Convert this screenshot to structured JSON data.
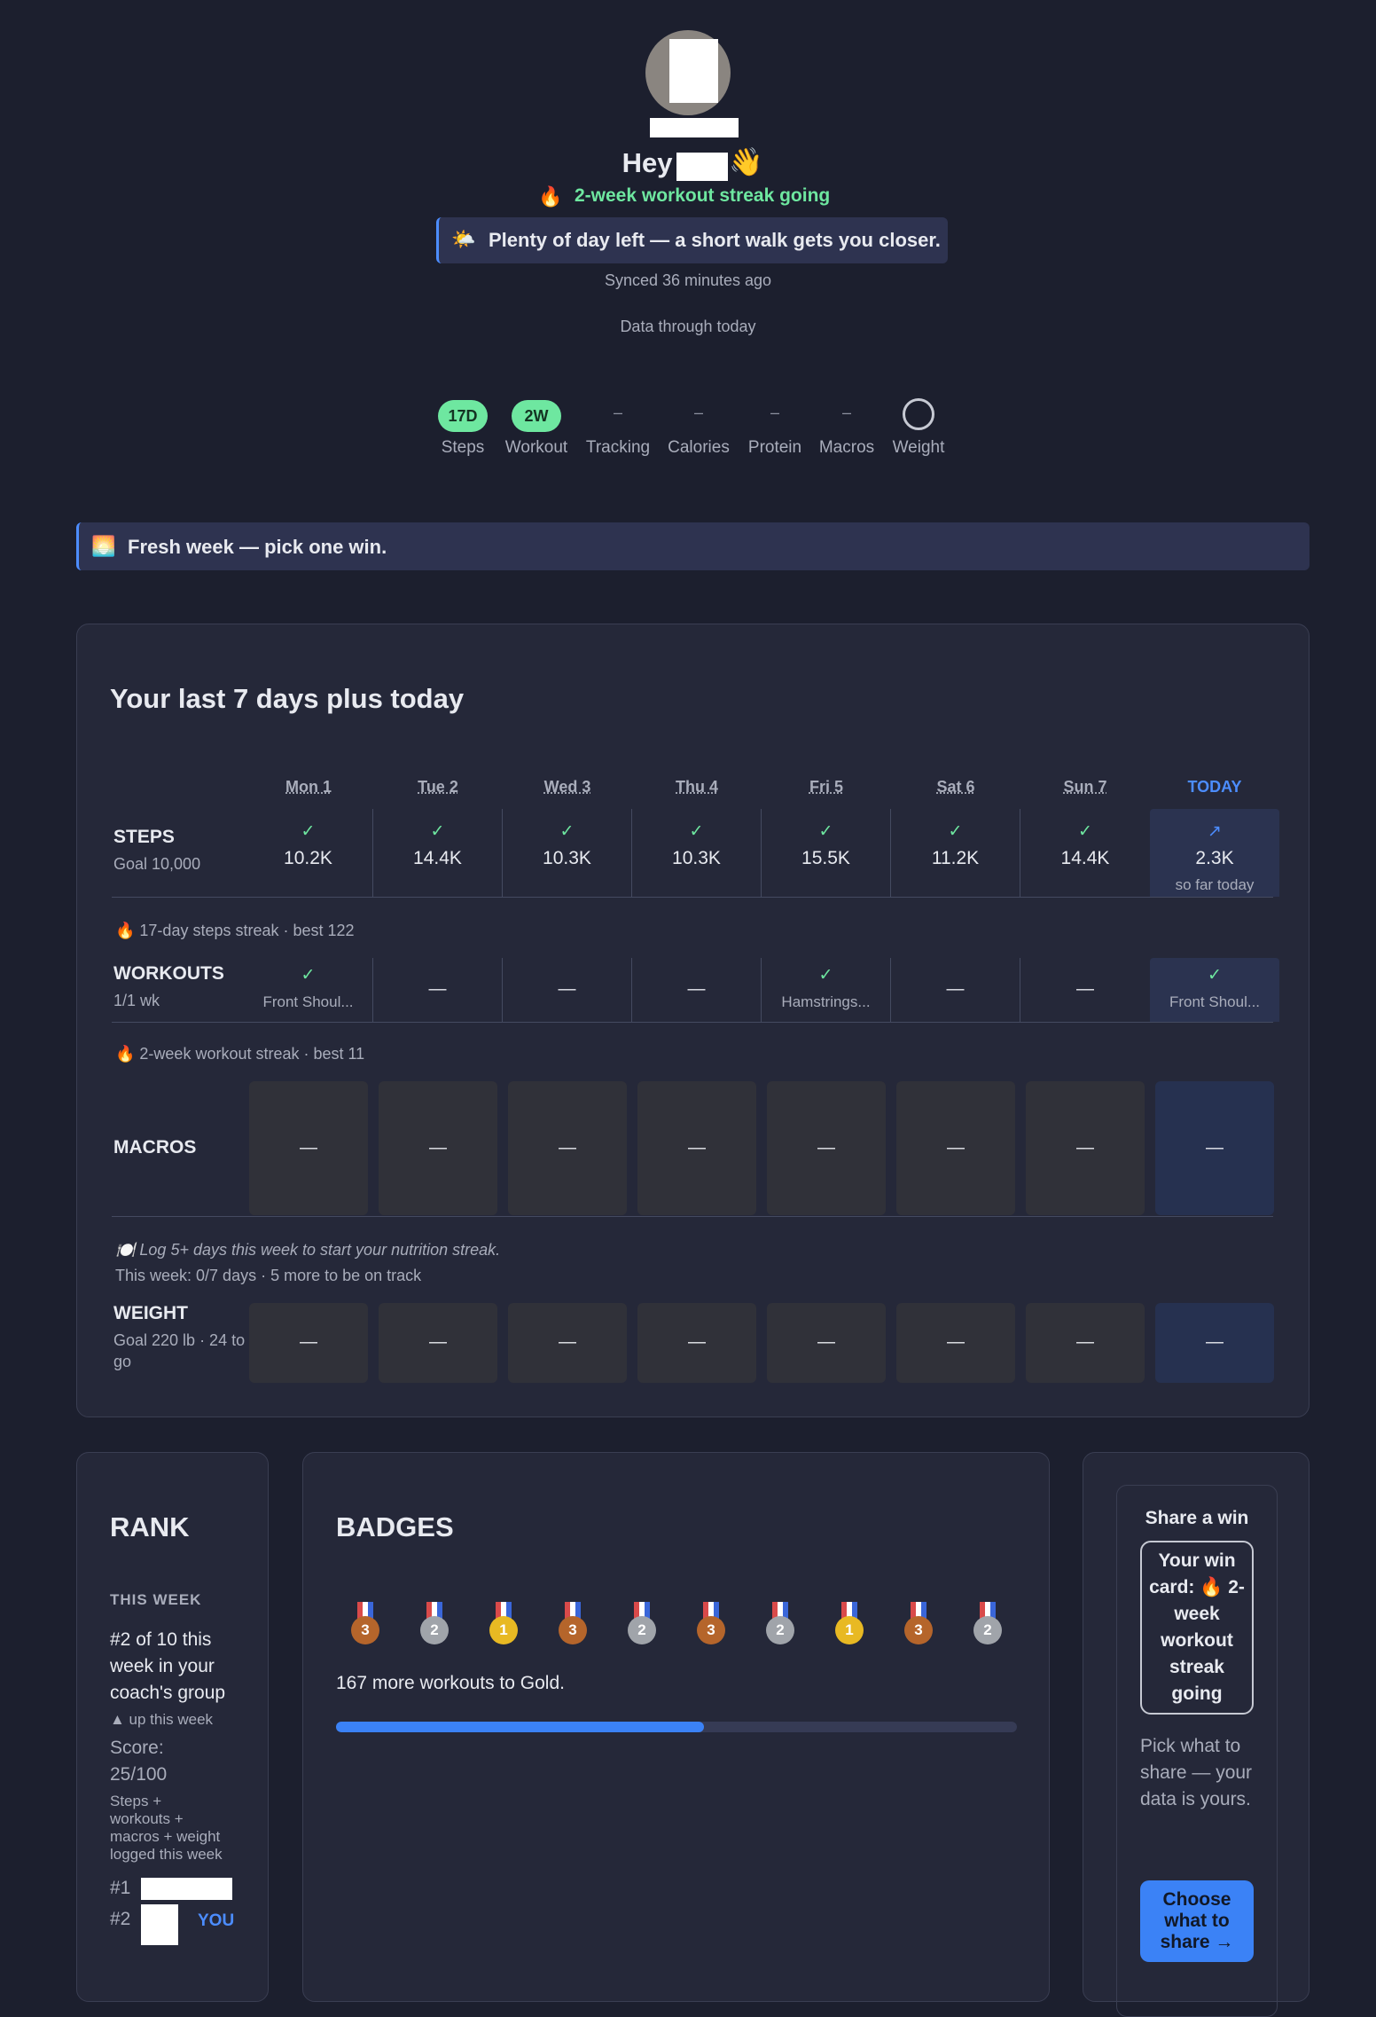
{
  "header": {
    "greeting": "Hey",
    "wave": "👋",
    "streak_icon": "🔥",
    "streak": "2-week workout streak going",
    "message_icon": "🌤️",
    "message": "Plenty of day left — a short walk gets you closer.",
    "synced": "Synced 36 minutes ago",
    "data_through": "Data through today"
  },
  "streaks": [
    {
      "badge": "17D",
      "label": "Steps"
    },
    {
      "badge": "2W",
      "label": "Workout"
    },
    {
      "badge": "–",
      "label": "Tracking"
    },
    {
      "badge": "–",
      "label": "Calories"
    },
    {
      "badge": "–",
      "label": "Protein"
    },
    {
      "badge": "–",
      "label": "Macros"
    },
    {
      "label": "Weight"
    }
  ],
  "banner": {
    "icon": "🌅",
    "text": "Fresh week — pick one win."
  },
  "week": {
    "title": "Your last 7 days plus today",
    "days": [
      "Mon 1",
      "Tue 2",
      "Wed 3",
      "Thu 4",
      "Fri 5",
      "Sat 6",
      "Sun 7",
      "TODAY"
    ],
    "steps": {
      "label": "STEPS",
      "sub": "Goal 10,000",
      "cells": [
        {
          "mark": "✓",
          "value": "10.2K"
        },
        {
          "mark": "✓",
          "value": "14.4K"
        },
        {
          "mark": "✓",
          "value": "10.3K"
        },
        {
          "mark": "✓",
          "value": "10.3K"
        },
        {
          "mark": "✓",
          "value": "15.5K"
        },
        {
          "mark": "✓",
          "value": "11.2K"
        },
        {
          "mark": "✓",
          "value": "14.4K"
        },
        {
          "mark": "↗",
          "value": "2.3K",
          "note": "so far today"
        }
      ],
      "streak": "🔥 17-day steps streak · best 122"
    },
    "workouts": {
      "label": "WORKOUTS",
      "sub": "1/1 wk",
      "cells": [
        {
          "mark": "✓",
          "value": "Front Shoul..."
        },
        {
          "mark": "—"
        },
        {
          "mark": "—"
        },
        {
          "mark": "—"
        },
        {
          "mark": "✓",
          "value": "Hamstrings..."
        },
        {
          "mark": "—"
        },
        {
          "mark": "—"
        },
        {
          "mark": "✓",
          "value": "Front Shoul..."
        }
      ],
      "streak": "🔥 2-week workout streak · best 11"
    },
    "macros": {
      "label": "MACROS",
      "cells": [
        "—",
        "—",
        "—",
        "—",
        "—",
        "—",
        "—",
        "—"
      ],
      "note": "🍽️ Log 5+ days this week to start your nutrition streak.",
      "progress": "This week: 0/7 days · 5 more to be on track"
    },
    "weight": {
      "label": "WEIGHT",
      "sub": "Goal 220 lb · 24 to go",
      "cells": [
        "—",
        "—",
        "—",
        "—",
        "—",
        "—",
        "—",
        "—"
      ]
    }
  },
  "rank": {
    "title": "RANK",
    "period": "THIS WEEK",
    "position": "#2 of 10 this week in your coach's group",
    "trend": "▲ up this week",
    "score": "Score: 25/100",
    "score_note": "Steps + workouts + macros + weight logged this week",
    "board": [
      {
        "place": "#1"
      },
      {
        "place": "#2",
        "you": "YOU"
      }
    ]
  },
  "badges": {
    "title": "BADGES",
    "medals": [
      3,
      2,
      1,
      3,
      2,
      3,
      2,
      1,
      3,
      2
    ],
    "goal": "167 more workouts to Gold.",
    "progress": 54
  },
  "share": {
    "title": "Share a win",
    "card": "Your win card: 🔥 2-week workout streak going",
    "note": "Pick what to share — your data is yours.",
    "button": "Choose what to share →"
  }
}
